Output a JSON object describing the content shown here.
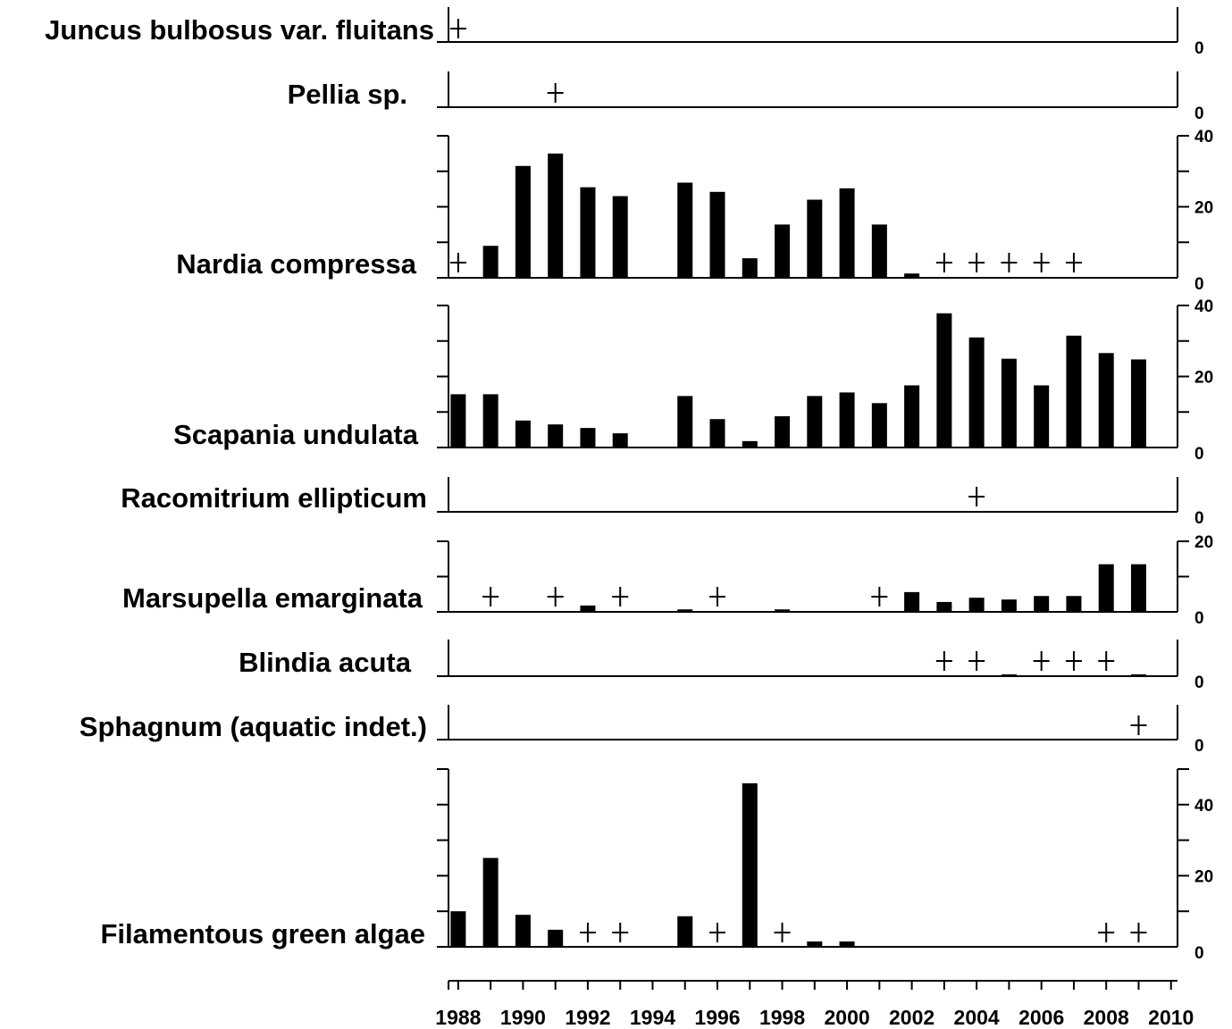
{
  "chart_data": {
    "type": "bar",
    "x_ticks": [
      1988,
      1990,
      1992,
      1994,
      1996,
      1998,
      2000,
      2002,
      2004,
      2006,
      2008,
      2010
    ],
    "x_range": [
      1987.7,
      2010.2
    ],
    "panels": [
      {
        "name": "Juncus bulbosus var. fluitans",
        "ylim": [
          0,
          10
        ],
        "yticks": [
          "0"
        ],
        "bars": [],
        "present": [
          1988
        ]
      },
      {
        "name": "Pellia sp.",
        "ylim": [
          0,
          10
        ],
        "yticks": [
          "0"
        ],
        "bars": [],
        "present": [
          1991
        ]
      },
      {
        "name": "Nardia compressa",
        "ylim": [
          0,
          40
        ],
        "yticks": [
          "0",
          "20",
          "40"
        ],
        "bars": [
          {
            "x": 1989,
            "y": 9
          },
          {
            "x": 1990,
            "y": 31.5
          },
          {
            "x": 1991,
            "y": 35
          },
          {
            "x": 1992,
            "y": 25.5
          },
          {
            "x": 1993,
            "y": 23
          },
          {
            "x": 1995,
            "y": 26.8
          },
          {
            "x": 1996,
            "y": 24.2
          },
          {
            "x": 1997,
            "y": 5.5
          },
          {
            "x": 1998,
            "y": 15
          },
          {
            "x": 1999,
            "y": 22
          },
          {
            "x": 2000,
            "y": 25.2
          },
          {
            "x": 2001,
            "y": 15
          },
          {
            "x": 2002,
            "y": 1.2
          }
        ],
        "present": [
          1988,
          2003,
          2004,
          2005,
          2006,
          2007
        ]
      },
      {
        "name": "Scapania undulata",
        "ylim": [
          0,
          40
        ],
        "yticks": [
          "0",
          "20",
          "40"
        ],
        "bars": [
          {
            "x": 1988,
            "y": 15
          },
          {
            "x": 1989,
            "y": 15
          },
          {
            "x": 1990,
            "y": 7.6
          },
          {
            "x": 1991,
            "y": 6.5
          },
          {
            "x": 1992,
            "y": 5.5
          },
          {
            "x": 1993,
            "y": 4
          },
          {
            "x": 1995,
            "y": 14.5
          },
          {
            "x": 1996,
            "y": 8
          },
          {
            "x": 1997,
            "y": 1.8
          },
          {
            "x": 1998,
            "y": 8.8
          },
          {
            "x": 1999,
            "y": 14.5
          },
          {
            "x": 2000,
            "y": 15.5
          },
          {
            "x": 2001,
            "y": 12.5
          },
          {
            "x": 2002,
            "y": 17.5
          },
          {
            "x": 2003,
            "y": 37.8
          },
          {
            "x": 2004,
            "y": 31
          },
          {
            "x": 2005,
            "y": 25
          },
          {
            "x": 2006,
            "y": 17.5
          },
          {
            "x": 2007,
            "y": 31.5
          },
          {
            "x": 2008,
            "y": 26.6
          },
          {
            "x": 2009,
            "y": 24.8
          }
        ],
        "present": []
      },
      {
        "name": "Racomitrium ellipticum",
        "ylim": [
          0,
          10
        ],
        "yticks": [
          "0"
        ],
        "bars": [],
        "present": [
          2004
        ]
      },
      {
        "name": "Marsupella emarginata",
        "ylim": [
          0,
          20
        ],
        "yticks": [
          "0",
          "20"
        ],
        "bars": [
          {
            "x": 1992,
            "y": 1.8
          },
          {
            "x": 1995,
            "y": 0.7
          },
          {
            "x": 1998,
            "y": 0.7
          },
          {
            "x": 2002,
            "y": 5.6
          },
          {
            "x": 2003,
            "y": 2.8
          },
          {
            "x": 2004,
            "y": 4
          },
          {
            "x": 2005,
            "y": 3.5
          },
          {
            "x": 2006,
            "y": 4.5
          },
          {
            "x": 2007,
            "y": 4.5
          },
          {
            "x": 2008,
            "y": 13.5
          },
          {
            "x": 2009,
            "y": 13.5
          }
        ],
        "present": [
          1989,
          1991,
          1993,
          1996,
          2001
        ]
      },
      {
        "name": "Blindia acuta",
        "ylim": [
          0,
          10
        ],
        "yticks": [
          "0"
        ],
        "bars": [
          {
            "x": 2005,
            "y": 0.5
          },
          {
            "x": 2009,
            "y": 0.5
          }
        ],
        "present": [
          2003,
          2004,
          2006,
          2007,
          2008
        ]
      },
      {
        "name": "Sphagnum (aquatic indet.)",
        "ylim": [
          0,
          10
        ],
        "yticks": [
          "0"
        ],
        "bars": [],
        "present": [
          2009
        ]
      },
      {
        "name": "Filamentous green algae",
        "ylim": [
          0,
          50
        ],
        "yticks": [
          "0",
          "20",
          "40"
        ],
        "bars": [
          {
            "x": 1988,
            "y": 10
          },
          {
            "x": 1989,
            "y": 25
          },
          {
            "x": 1990,
            "y": 9
          },
          {
            "x": 1991,
            "y": 4.8
          },
          {
            "x": 1995,
            "y": 8.6
          },
          {
            "x": 1997,
            "y": 46
          },
          {
            "x": 1999,
            "y": 1.5
          },
          {
            "x": 2000,
            "y": 1.5
          }
        ],
        "present": [
          1992,
          1993,
          1996,
          1998,
          2008,
          2009
        ]
      }
    ]
  }
}
